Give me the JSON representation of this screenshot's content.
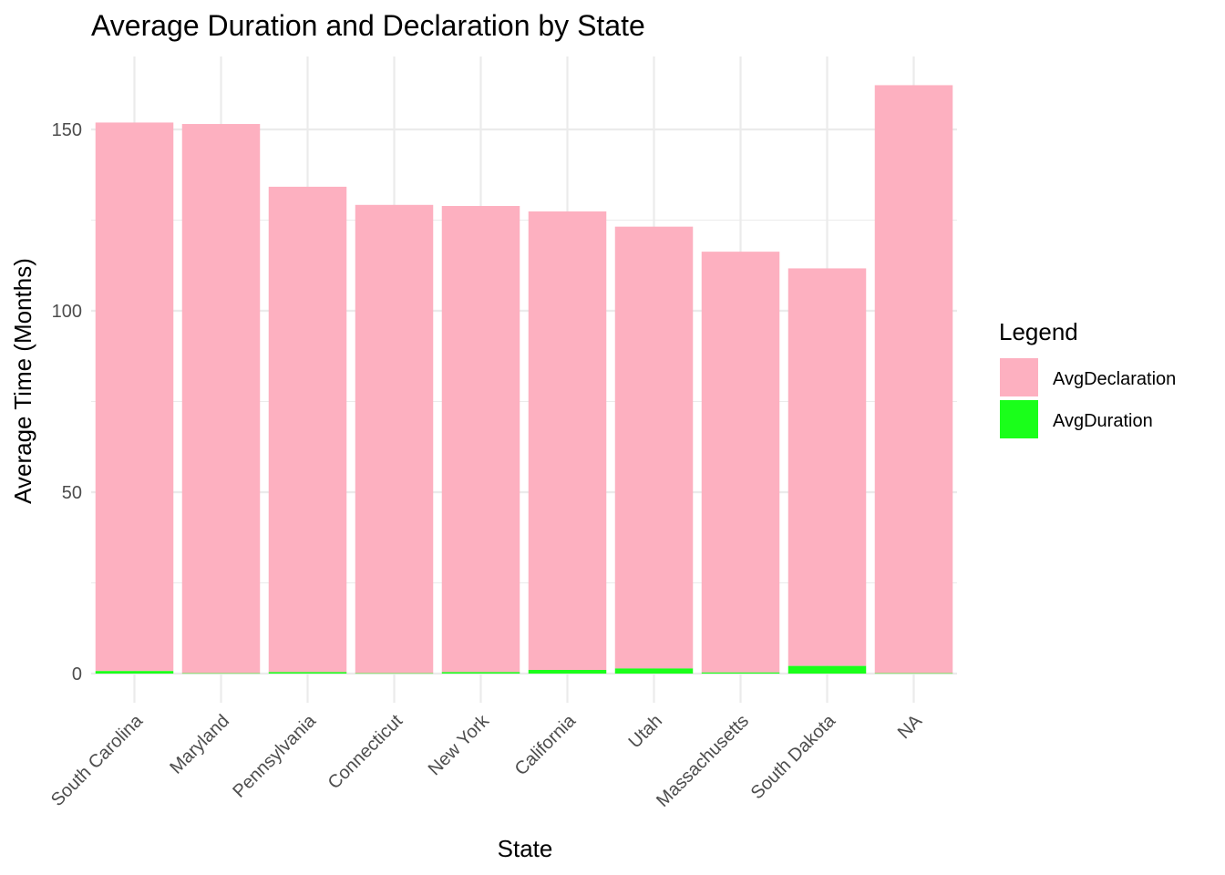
{
  "chart_data": {
    "type": "bar",
    "stacked": true,
    "title": "Average Duration and Declaration by State",
    "xlabel": "State",
    "ylabel": "Average Time (Months)",
    "categories": [
      "South Carolina",
      "Maryland",
      "Pennsylvania",
      "Connecticut",
      "New York",
      "California",
      "Utah",
      "Massachusetts",
      "South Dakota",
      "NA"
    ],
    "series": [
      {
        "name": "AvgDuration",
        "color": "#1aff1a",
        "values": [
          0.7,
          0.1,
          0.4,
          0.1,
          0.4,
          1.0,
          1.4,
          0.3,
          2.1,
          0.1
        ]
      },
      {
        "name": "AvgDeclaration",
        "color": "#fdb0c0",
        "values": [
          151.2,
          151.4,
          133.8,
          129.1,
          128.5,
          126.4,
          121.8,
          116.0,
          109.6,
          162.1
        ]
      }
    ],
    "ylim": [
      0,
      170
    ],
    "yticks": [
      0,
      50,
      100,
      150
    ],
    "grid": true,
    "legend": {
      "title": "Legend",
      "position": "right",
      "entries": [
        "AvgDeclaration",
        "AvgDuration"
      ]
    }
  }
}
